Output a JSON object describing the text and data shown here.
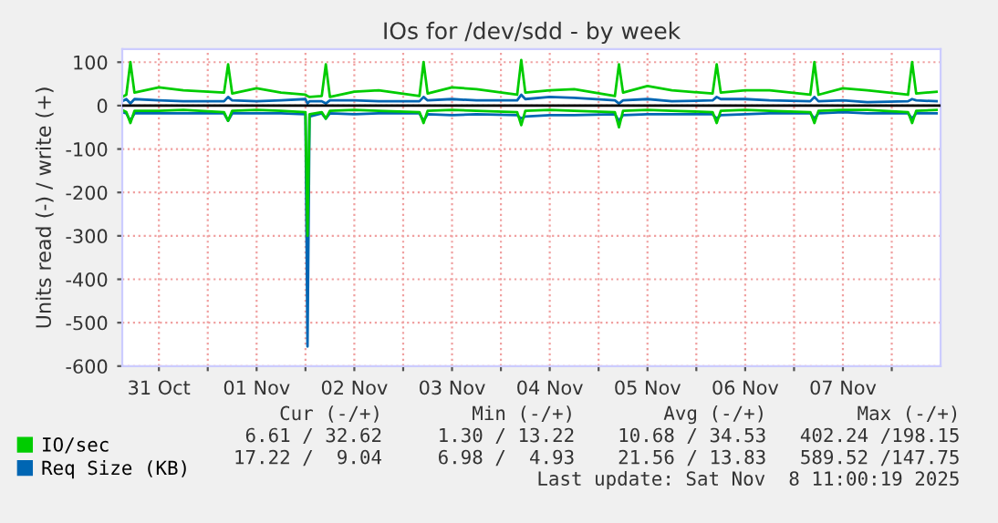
{
  "chart_data": {
    "type": "line",
    "title": "IOs for /dev/sdd - by week",
    "ylabel": "Units read (-) / write (+)",
    "x": [
      "2025-10-31T03:00",
      "2025-10-31T04:00",
      "2025-10-31T05:00",
      "2025-10-31T06:00",
      "2025-10-31T12:00",
      "2025-10-31T18:00",
      "2025-11-01T04:00",
      "2025-11-01T05:00",
      "2025-11-01T06:00",
      "2025-11-01T12:00",
      "2025-11-01T18:00",
      "2025-11-02T00:00",
      "2025-11-02T00:30",
      "2025-11-02T01:00",
      "2025-11-02T04:00",
      "2025-11-02T05:00",
      "2025-11-02T06:00",
      "2025-11-02T12:00",
      "2025-11-02T18:00",
      "2025-11-03T04:00",
      "2025-11-03T05:00",
      "2025-11-03T06:00",
      "2025-11-03T12:00",
      "2025-11-03T18:00",
      "2025-11-04T04:00",
      "2025-11-04T05:00",
      "2025-11-04T06:00",
      "2025-11-04T12:00",
      "2025-11-04T18:00",
      "2025-11-05T04:00",
      "2025-11-05T05:00",
      "2025-11-05T06:00",
      "2025-11-05T12:00",
      "2025-11-05T18:00",
      "2025-11-06T04:00",
      "2025-11-06T05:00",
      "2025-11-06T06:00",
      "2025-11-06T12:00",
      "2025-11-06T18:00",
      "2025-11-07T04:00",
      "2025-11-07T05:00",
      "2025-11-07T06:00",
      "2025-11-07T12:00",
      "2025-11-07T18:00",
      "2025-11-08T04:00",
      "2025-11-08T05:00",
      "2025-11-08T06:00",
      "2025-11-08T11:00"
    ],
    "series": [
      {
        "name": "IO/sec",
        "color": "#00cc00",
        "values": [
          20,
          25,
          100,
          30,
          42,
          35,
          30,
          95,
          28,
          40,
          30,
          25,
          22,
          20,
          22,
          95,
          20,
          32,
          35,
          22,
          100,
          28,
          42,
          38,
          25,
          105,
          30,
          35,
          38,
          22,
          95,
          30,
          45,
          35,
          28,
          95,
          30,
          35,
          35,
          25,
          100,
          25,
          40,
          35,
          25,
          100,
          28,
          32
        ]
      },
      {
        "name": "Req Size (KB)",
        "color": "#0066b3",
        "values": [
          10,
          15,
          5,
          15,
          12,
          10,
          10,
          20,
          12,
          10,
          12,
          15,
          5,
          10,
          10,
          5,
          12,
          12,
          10,
          10,
          20,
          12,
          15,
          12,
          12,
          25,
          15,
          20,
          18,
          12,
          5,
          12,
          15,
          10,
          12,
          20,
          15,
          15,
          12,
          10,
          20,
          10,
          12,
          8,
          10,
          15,
          12,
          10
        ]
      },
      {
        "color": "#0066b3",
        "values": [
          -15,
          -18,
          -35,
          -18,
          -18,
          -18,
          -18,
          -35,
          -18,
          -18,
          -18,
          -20,
          -555,
          -25,
          -18,
          -30,
          -18,
          -20,
          -18,
          -18,
          -35,
          -20,
          -22,
          -20,
          -22,
          -30,
          -25,
          -22,
          -22,
          -20,
          -35,
          -22,
          -20,
          -20,
          -20,
          -30,
          -22,
          -20,
          -18,
          -18,
          -30,
          -18,
          -15,
          -18,
          -18,
          -30,
          -18,
          -18
        ]
      },
      {
        "color": "#00cc00",
        "values": [
          -10,
          -15,
          -40,
          -12,
          -12,
          -10,
          -15,
          -35,
          -12,
          -10,
          -12,
          -15,
          -300,
          -20,
          -15,
          -30,
          -12,
          -10,
          -12,
          -15,
          -40,
          -12,
          -10,
          -12,
          -15,
          -45,
          -12,
          -10,
          -12,
          -15,
          -50,
          -12,
          -10,
          -12,
          -15,
          -40,
          -12,
          -10,
          -12,
          -15,
          -40,
          -12,
          -10,
          -10,
          -15,
          -40,
          -12,
          -10
        ]
      }
    ],
    "xlim": [
      "2025-10-31T03:00",
      "2025-11-08T12:00"
    ],
    "xticks": [
      {
        "value": "2025-10-31T12:00",
        "label": "31 Oct"
      },
      {
        "value": "2025-11-01T00:00",
        "label": null
      },
      {
        "value": "2025-11-01T12:00",
        "label": "01 Nov"
      },
      {
        "value": "2025-11-02T00:00",
        "label": null
      },
      {
        "value": "2025-11-02T12:00",
        "label": "02 Nov"
      },
      {
        "value": "2025-11-03T00:00",
        "label": null
      },
      {
        "value": "2025-11-03T12:00",
        "label": "03 Nov"
      },
      {
        "value": "2025-11-04T00:00",
        "label": null
      },
      {
        "value": "2025-11-04T12:00",
        "label": "04 Nov"
      },
      {
        "value": "2025-11-05T00:00",
        "label": null
      },
      {
        "value": "2025-11-05T12:00",
        "label": "05 Nov"
      },
      {
        "value": "2025-11-06T00:00",
        "label": null
      },
      {
        "value": "2025-11-06T12:00",
        "label": "06 Nov"
      },
      {
        "value": "2025-11-07T00:00",
        "label": null
      },
      {
        "value": "2025-11-07T12:00",
        "label": "07 Nov"
      },
      {
        "value": "2025-11-08T00:00",
        "label": null
      }
    ],
    "ylim": [
      -600,
      130
    ],
    "yticks": [
      -600,
      -500,
      -400,
      -300,
      -200,
      -100,
      0,
      100
    ],
    "ref_lines": [
      {
        "axis": "y",
        "value": 0,
        "label": null,
        "color": "#000000"
      }
    ],
    "grid": true,
    "legend": "bottom",
    "marker": "none",
    "line_style": "solid",
    "annotations": [
      "Cur (-/+)",
      "Min (-/+)",
      "Avg (-/+)",
      "Max (-/+)",
      "6.61 / 32.62",
      "1.30 / 13.22",
      "10.68 / 34.53",
      "402.24 /198.15",
      "17.22 /  9.04",
      "6.98 /  4.93",
      "21.56 / 13.83",
      "589.52 /147.75",
      "Last update: Sat Nov  8 11:00:19 2025"
    ]
  }
}
